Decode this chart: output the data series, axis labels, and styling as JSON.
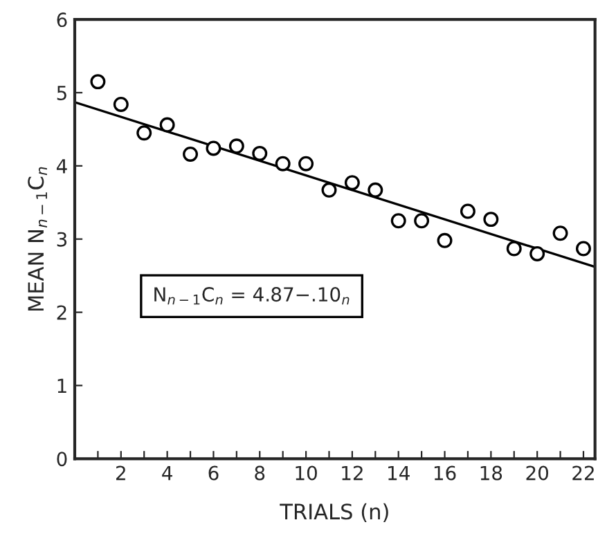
{
  "chart_data": {
    "type": "scatter",
    "xlabel": "TRIALS (n)",
    "ylabel": "MEAN N$_{n−1}$C$_{n}$",
    "x": [
      1,
      2,
      3,
      4,
      5,
      6,
      7,
      8,
      9,
      10,
      11,
      12,
      13,
      14,
      15,
      16,
      17,
      18,
      19,
      20,
      21,
      22
    ],
    "series": [
      {
        "color": "#000000",
        "marker": "circle",
        "values": [
          5.15,
          4.84,
          4.45,
          4.56,
          4.16,
          4.24,
          4.27,
          4.17,
          4.03,
          4.03,
          3.67,
          3.77,
          3.67,
          3.25,
          3.25,
          2.98,
          3.38,
          3.27,
          2.87,
          2.8,
          3.08,
          2.87
        ]
      },
      {
        "type": "line",
        "color": "#000000",
        "line_style": "solid",
        "x": [
          0,
          22.5
        ],
        "values": [
          4.87,
          2.62
        ]
      }
    ],
    "annotations": [
      "N$_{n−1}$C$_{n}$ = 4.87−.10$_{n}$"
    ],
    "xlim": [
      0,
      22.5
    ],
    "ylim": [
      0,
      6
    ],
    "xticks": [
      {
        "value": 1,
        "label": null
      },
      2,
      {
        "value": 3,
        "label": null
      },
      4,
      {
        "value": 5,
        "label": null
      },
      6,
      {
        "value": 7,
        "label": null
      },
      8,
      {
        "value": 9,
        "label": null
      },
      10,
      {
        "value": 11,
        "label": null
      },
      12,
      {
        "value": 13,
        "label": null
      },
      14,
      {
        "value": 15,
        "label": null
      },
      16,
      {
        "value": 17,
        "label": null
      },
      18,
      {
        "value": 19,
        "label": null
      },
      20,
      {
        "value": 21,
        "label": null
      },
      22
    ],
    "yticks": [
      0,
      1,
      2,
      3,
      4,
      5,
      6
    ],
    "grid": false,
    "legend": false
  }
}
